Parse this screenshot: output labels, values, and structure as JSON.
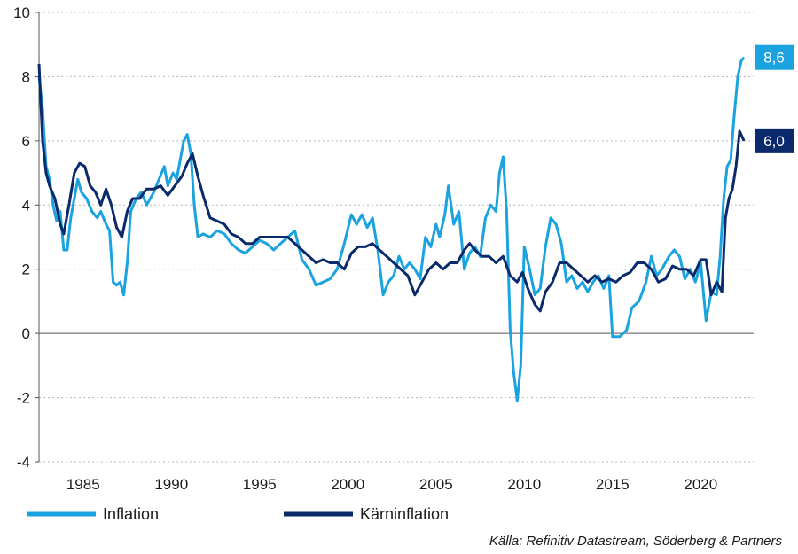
{
  "chart_data": {
    "type": "line",
    "xlim": [
      1982.5,
      2023.0
    ],
    "ylim": [
      -4,
      10
    ],
    "y_ticks": [
      -4,
      -2,
      0,
      2,
      4,
      6,
      8,
      10
    ],
    "x_ticks": [
      1985,
      1990,
      1995,
      2000,
      2005,
      2010,
      2015,
      2020
    ],
    "y_tick_labels": [
      "-4",
      "-2",
      "0",
      "2",
      "4",
      "6",
      "8",
      "10"
    ],
    "x_tick_labels": [
      "1985",
      "1990",
      "1995",
      "2000",
      "2005",
      "2010",
      "2015",
      "2020"
    ],
    "grid": "horizontal dotted",
    "legend_position": "bottom-left",
    "series": [
      {
        "name": "Inflation",
        "color": "#1aa3de",
        "end_label": "8,6",
        "points": [
          [
            1982.5,
            8.0
          ],
          [
            1982.7,
            7.0
          ],
          [
            1982.9,
            5.2
          ],
          [
            1983.1,
            4.8
          ],
          [
            1983.3,
            4.0
          ],
          [
            1983.5,
            3.5
          ],
          [
            1983.7,
            3.8
          ],
          [
            1983.9,
            2.6
          ],
          [
            1984.1,
            2.6
          ],
          [
            1984.3,
            3.6
          ],
          [
            1984.5,
            4.2
          ],
          [
            1984.7,
            4.8
          ],
          [
            1984.9,
            4.4
          ],
          [
            1985.2,
            4.2
          ],
          [
            1985.5,
            3.8
          ],
          [
            1985.8,
            3.6
          ],
          [
            1986.0,
            3.8
          ],
          [
            1986.3,
            3.4
          ],
          [
            1986.5,
            3.2
          ],
          [
            1986.7,
            1.6
          ],
          [
            1986.9,
            1.5
          ],
          [
            1987.1,
            1.6
          ],
          [
            1987.3,
            1.2
          ],
          [
            1987.5,
            2.2
          ],
          [
            1987.7,
            3.8
          ],
          [
            1988.0,
            4.2
          ],
          [
            1988.3,
            4.4
          ],
          [
            1988.6,
            4.0
          ],
          [
            1989.0,
            4.4
          ],
          [
            1989.3,
            4.8
          ],
          [
            1989.6,
            5.2
          ],
          [
            1989.8,
            4.6
          ],
          [
            1990.1,
            5.0
          ],
          [
            1990.3,
            4.8
          ],
          [
            1990.5,
            5.4
          ],
          [
            1990.7,
            6.0
          ],
          [
            1990.9,
            6.2
          ],
          [
            1991.1,
            5.6
          ],
          [
            1991.3,
            4.0
          ],
          [
            1991.5,
            3.0
          ],
          [
            1991.8,
            3.1
          ],
          [
            1992.2,
            3.0
          ],
          [
            1992.6,
            3.2
          ],
          [
            1993.0,
            3.1
          ],
          [
            1993.4,
            2.8
          ],
          [
            1993.8,
            2.6
          ],
          [
            1994.2,
            2.5
          ],
          [
            1994.6,
            2.7
          ],
          [
            1995.0,
            2.9
          ],
          [
            1995.4,
            2.8
          ],
          [
            1995.8,
            2.6
          ],
          [
            1996.2,
            2.8
          ],
          [
            1996.6,
            3.0
          ],
          [
            1997.0,
            3.2
          ],
          [
            1997.4,
            2.3
          ],
          [
            1997.8,
            2.0
          ],
          [
            1998.2,
            1.5
          ],
          [
            1998.6,
            1.6
          ],
          [
            1999.0,
            1.7
          ],
          [
            1999.4,
            2.0
          ],
          [
            1999.8,
            2.8
          ],
          [
            2000.2,
            3.7
          ],
          [
            2000.5,
            3.4
          ],
          [
            2000.8,
            3.7
          ],
          [
            2001.1,
            3.3
          ],
          [
            2001.4,
            3.6
          ],
          [
            2001.7,
            2.6
          ],
          [
            2002.0,
            1.2
          ],
          [
            2002.3,
            1.6
          ],
          [
            2002.6,
            1.8
          ],
          [
            2002.9,
            2.4
          ],
          [
            2003.2,
            2.0
          ],
          [
            2003.5,
            2.2
          ],
          [
            2003.8,
            2.0
          ],
          [
            2004.1,
            1.7
          ],
          [
            2004.4,
            3.0
          ],
          [
            2004.7,
            2.7
          ],
          [
            2005.0,
            3.4
          ],
          [
            2005.2,
            3.0
          ],
          [
            2005.5,
            3.7
          ],
          [
            2005.7,
            4.6
          ],
          [
            2006.0,
            3.4
          ],
          [
            2006.3,
            3.8
          ],
          [
            2006.6,
            2.0
          ],
          [
            2006.9,
            2.5
          ],
          [
            2007.2,
            2.7
          ],
          [
            2007.5,
            2.4
          ],
          [
            2007.8,
            3.6
          ],
          [
            2008.1,
            4.0
          ],
          [
            2008.4,
            3.8
          ],
          [
            2008.6,
            5.0
          ],
          [
            2008.8,
            5.5
          ],
          [
            2009.0,
            3.8
          ],
          [
            2009.2,
            0.1
          ],
          [
            2009.4,
            -1.2
          ],
          [
            2009.6,
            -2.1
          ],
          [
            2009.8,
            -1.0
          ],
          [
            2010.0,
            2.7
          ],
          [
            2010.3,
            2.0
          ],
          [
            2010.6,
            1.2
          ],
          [
            2010.9,
            1.4
          ],
          [
            2011.2,
            2.7
          ],
          [
            2011.5,
            3.6
          ],
          [
            2011.8,
            3.4
          ],
          [
            2012.1,
            2.8
          ],
          [
            2012.4,
            1.6
          ],
          [
            2012.7,
            1.8
          ],
          [
            2013.0,
            1.4
          ],
          [
            2013.3,
            1.6
          ],
          [
            2013.6,
            1.3
          ],
          [
            2013.9,
            1.6
          ],
          [
            2014.2,
            1.8
          ],
          [
            2014.5,
            1.4
          ],
          [
            2014.8,
            1.8
          ],
          [
            2015.0,
            -0.1
          ],
          [
            2015.4,
            -0.1
          ],
          [
            2015.8,
            0.1
          ],
          [
            2016.1,
            0.8
          ],
          [
            2016.5,
            1.0
          ],
          [
            2016.9,
            1.6
          ],
          [
            2017.2,
            2.4
          ],
          [
            2017.5,
            1.8
          ],
          [
            2017.8,
            2.0
          ],
          [
            2018.2,
            2.4
          ],
          [
            2018.5,
            2.6
          ],
          [
            2018.8,
            2.4
          ],
          [
            2019.1,
            1.7
          ],
          [
            2019.4,
            2.0
          ],
          [
            2019.7,
            1.6
          ],
          [
            2020.0,
            2.2
          ],
          [
            2020.3,
            0.4
          ],
          [
            2020.6,
            1.3
          ],
          [
            2020.9,
            1.2
          ],
          [
            2021.1,
            2.4
          ],
          [
            2021.3,
            4.2
          ],
          [
            2021.5,
            5.2
          ],
          [
            2021.7,
            5.4
          ],
          [
            2021.9,
            6.8
          ],
          [
            2022.1,
            8.0
          ],
          [
            2022.3,
            8.5
          ],
          [
            2022.45,
            8.6
          ]
        ]
      },
      {
        "name": "Kärninflation",
        "color": "#0a2a6b",
        "end_label": "6,0",
        "points": [
          [
            1982.5,
            8.4
          ],
          [
            1982.7,
            6.0
          ],
          [
            1982.9,
            5.0
          ],
          [
            1983.1,
            4.6
          ],
          [
            1983.4,
            4.2
          ],
          [
            1983.7,
            3.4
          ],
          [
            1983.9,
            3.1
          ],
          [
            1984.2,
            4.0
          ],
          [
            1984.5,
            5.0
          ],
          [
            1984.8,
            5.3
          ],
          [
            1985.1,
            5.2
          ],
          [
            1985.4,
            4.6
          ],
          [
            1985.7,
            4.4
          ],
          [
            1986.0,
            4.0
          ],
          [
            1986.3,
            4.5
          ],
          [
            1986.6,
            4.0
          ],
          [
            1986.9,
            3.3
          ],
          [
            1987.2,
            3.0
          ],
          [
            1987.5,
            3.8
          ],
          [
            1987.8,
            4.2
          ],
          [
            1988.2,
            4.2
          ],
          [
            1988.6,
            4.5
          ],
          [
            1989.0,
            4.5
          ],
          [
            1989.4,
            4.6
          ],
          [
            1989.8,
            4.3
          ],
          [
            1990.2,
            4.6
          ],
          [
            1990.6,
            4.9
          ],
          [
            1990.9,
            5.3
          ],
          [
            1991.2,
            5.6
          ],
          [
            1991.5,
            4.9
          ],
          [
            1991.8,
            4.3
          ],
          [
            1992.2,
            3.6
          ],
          [
            1992.6,
            3.5
          ],
          [
            1993.0,
            3.4
          ],
          [
            1993.4,
            3.1
          ],
          [
            1993.8,
            3.0
          ],
          [
            1994.2,
            2.8
          ],
          [
            1994.6,
            2.8
          ],
          [
            1995.0,
            3.0
          ],
          [
            1995.4,
            3.0
          ],
          [
            1995.8,
            3.0
          ],
          [
            1996.2,
            3.0
          ],
          [
            1996.6,
            3.0
          ],
          [
            1997.0,
            2.8
          ],
          [
            1997.4,
            2.6
          ],
          [
            1997.8,
            2.4
          ],
          [
            1998.2,
            2.2
          ],
          [
            1998.6,
            2.3
          ],
          [
            1999.0,
            2.2
          ],
          [
            1999.4,
            2.2
          ],
          [
            1999.8,
            2.0
          ],
          [
            2000.2,
            2.5
          ],
          [
            2000.6,
            2.7
          ],
          [
            2001.0,
            2.7
          ],
          [
            2001.4,
            2.8
          ],
          [
            2001.8,
            2.6
          ],
          [
            2002.2,
            2.4
          ],
          [
            2002.6,
            2.2
          ],
          [
            2003.0,
            2.0
          ],
          [
            2003.4,
            1.8
          ],
          [
            2003.8,
            1.2
          ],
          [
            2004.2,
            1.6
          ],
          [
            2004.6,
            2.0
          ],
          [
            2005.0,
            2.2
          ],
          [
            2005.4,
            2.0
          ],
          [
            2005.8,
            2.2
          ],
          [
            2006.2,
            2.2
          ],
          [
            2006.6,
            2.6
          ],
          [
            2006.9,
            2.8
          ],
          [
            2007.2,
            2.6
          ],
          [
            2007.6,
            2.4
          ],
          [
            2008.0,
            2.4
          ],
          [
            2008.4,
            2.2
          ],
          [
            2008.8,
            2.4
          ],
          [
            2009.2,
            1.8
          ],
          [
            2009.6,
            1.6
          ],
          [
            2009.9,
            1.9
          ],
          [
            2010.2,
            1.4
          ],
          [
            2010.6,
            0.9
          ],
          [
            2010.9,
            0.7
          ],
          [
            2011.2,
            1.3
          ],
          [
            2011.6,
            1.6
          ],
          [
            2012.0,
            2.2
          ],
          [
            2012.4,
            2.2
          ],
          [
            2012.8,
            2.0
          ],
          [
            2013.2,
            1.8
          ],
          [
            2013.6,
            1.6
          ],
          [
            2014.0,
            1.8
          ],
          [
            2014.4,
            1.6
          ],
          [
            2014.8,
            1.7
          ],
          [
            2015.2,
            1.6
          ],
          [
            2015.6,
            1.8
          ],
          [
            2016.0,
            1.9
          ],
          [
            2016.4,
            2.2
          ],
          [
            2016.8,
            2.2
          ],
          [
            2017.2,
            2.0
          ],
          [
            2017.6,
            1.6
          ],
          [
            2018.0,
            1.7
          ],
          [
            2018.4,
            2.1
          ],
          [
            2018.8,
            2.0
          ],
          [
            2019.2,
            2.0
          ],
          [
            2019.6,
            1.8
          ],
          [
            2020.0,
            2.3
          ],
          [
            2020.3,
            2.3
          ],
          [
            2020.6,
            1.2
          ],
          [
            2020.9,
            1.6
          ],
          [
            2021.2,
            1.3
          ],
          [
            2021.4,
            3.6
          ],
          [
            2021.6,
            4.2
          ],
          [
            2021.8,
            4.5
          ],
          [
            2022.0,
            5.2
          ],
          [
            2022.2,
            6.3
          ],
          [
            2022.45,
            6.0
          ]
        ]
      }
    ]
  },
  "legend": {
    "items": [
      {
        "label": "Inflation",
        "color": "#1aa3de"
      },
      {
        "label": "Kärninflation",
        "color": "#0a2a6b"
      }
    ]
  },
  "source": "Källa: Refinitiv Datastream, Söderberg & Partners"
}
